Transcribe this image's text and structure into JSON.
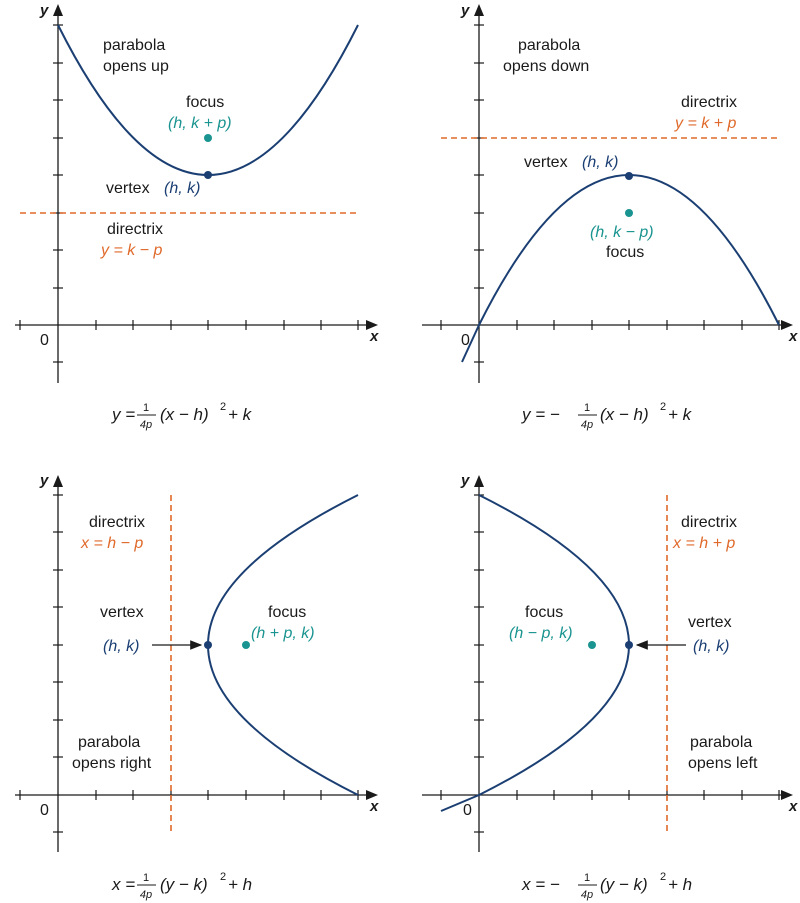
{
  "colors": {
    "curve": "#1b3f73",
    "directrix": "#e06a2c",
    "focus": "#1a9490",
    "axis": "#1a1a1a"
  },
  "panels": [
    {
      "axis_x": "x",
      "axis_y": "y",
      "origin": "0",
      "opens_line1": "parabola",
      "opens_line2": "opens up",
      "focus_label": "focus",
      "focus_coords": "(h, k + p)",
      "vertex_label": "vertex",
      "vertex_coords": "(h, k)",
      "directrix_label": "directrix",
      "directrix_eq": "y = k − p",
      "equation": {
        "lhs": "y = ",
        "frac_num": "1",
        "frac_den": "4p",
        "rest": "(x − h)",
        "exp": "2",
        "tail": " + k"
      }
    },
    {
      "axis_x": "x",
      "axis_y": "y",
      "origin": "0",
      "opens_line1": "parabola",
      "opens_line2": "opens down",
      "focus_label": "focus",
      "focus_coords": "(h, k − p)",
      "vertex_label": "vertex",
      "vertex_coords": "(h, k)",
      "directrix_label": "directrix",
      "directrix_eq": "y = k + p",
      "equation": {
        "lhs": "y = −",
        "frac_num": "1",
        "frac_den": "4p",
        "rest": "(x − h)",
        "exp": "2",
        "tail": " + k"
      }
    },
    {
      "axis_x": "x",
      "axis_y": "y",
      "origin": "0",
      "opens_line1": "parabola",
      "opens_line2": "opens right",
      "focus_label": "focus",
      "focus_coords": "(h + p, k)",
      "vertex_label": "vertex",
      "vertex_coords": "(h, k)",
      "directrix_label": "directrix",
      "directrix_eq": "x = h − p",
      "equation": {
        "lhs": "x = ",
        "frac_num": "1",
        "frac_den": "4p",
        "rest": "(y − k)",
        "exp": "2",
        "tail": " + h"
      }
    },
    {
      "axis_x": "x",
      "axis_y": "y",
      "origin": "0",
      "opens_line1": "parabola",
      "opens_line2": "opens left",
      "focus_label": "focus",
      "focus_coords": "(h − p, k)",
      "vertex_label": "vertex",
      "vertex_coords": "(h, k)",
      "directrix_label": "directrix",
      "directrix_eq": "x = h + p",
      "equation": {
        "lhs": "x = −",
        "frac_num": "1",
        "frac_den": "4p",
        "rest": "(y − k)",
        "exp": "2",
        "tail": " + h"
      }
    }
  ]
}
